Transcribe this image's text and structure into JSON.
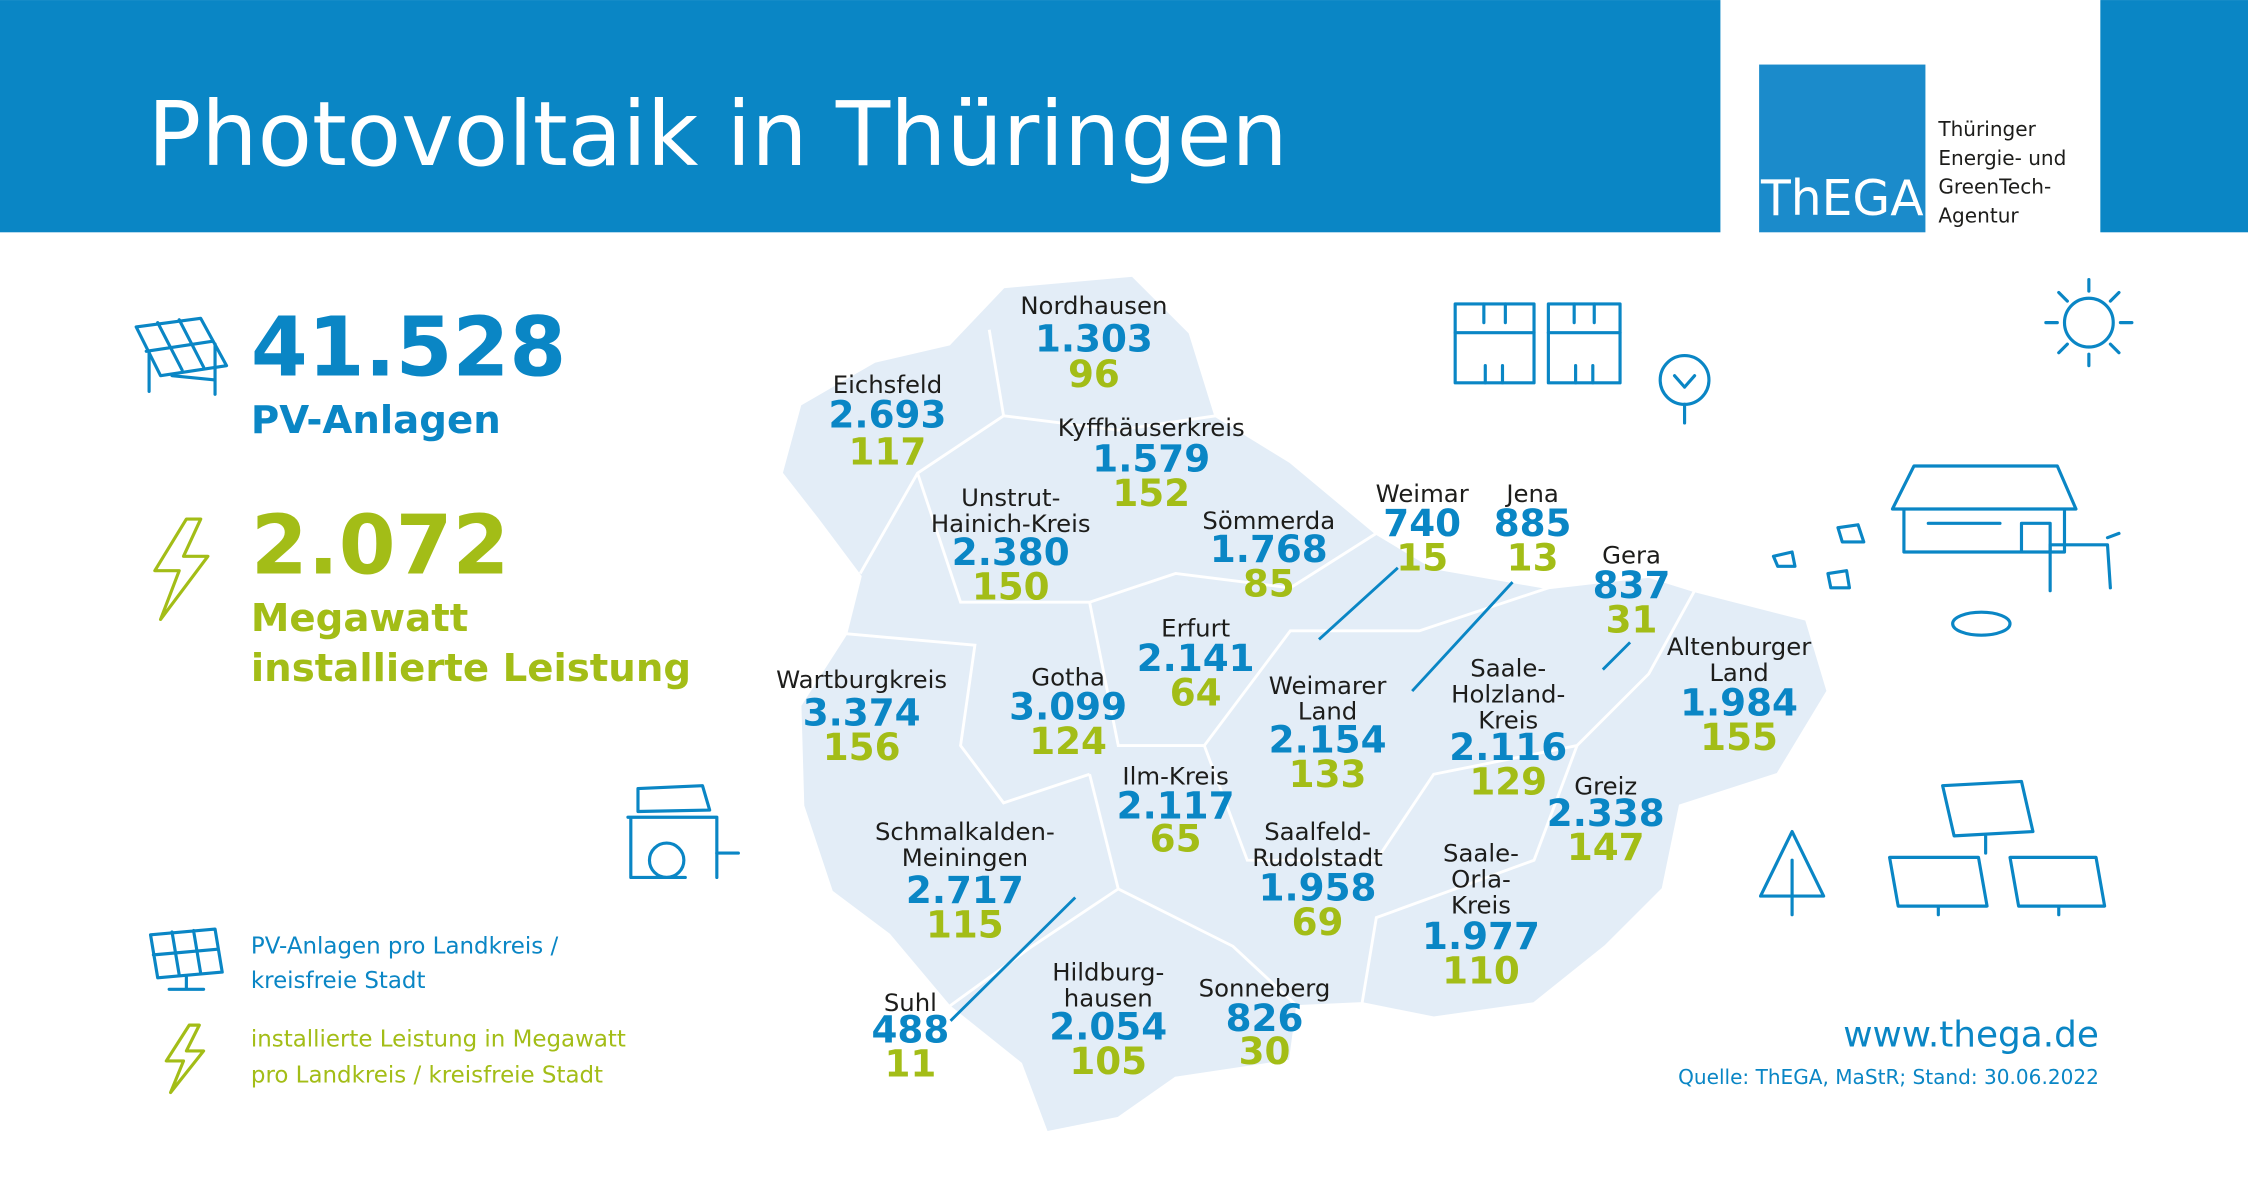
{
  "header": {
    "title": "Photovoltaik in Thüringen",
    "logo": "ThEGA",
    "agency_lines": [
      "Thüringer",
      "Energie- und",
      "GreenTech-",
      "Agentur"
    ]
  },
  "totals": {
    "installations": "41.528",
    "installations_label": "PV-Anlagen",
    "capacity": "2.072",
    "capacity_label_lines": [
      "Megawatt",
      "installierte Leistung"
    ]
  },
  "districts": [
    {
      "name_lines": [
        "Nordhausen"
      ],
      "installations": "1.303",
      "megawatt": "96"
    },
    {
      "name_lines": [
        "Eichsfeld"
      ],
      "installations": "2.693",
      "megawatt": "117"
    },
    {
      "name_lines": [
        "Kyffhäuserkreis"
      ],
      "installations": "1.579",
      "megawatt": "152"
    },
    {
      "name_lines": [
        "Unstrut-",
        "Hainich-Kreis"
      ],
      "installations": "2.380",
      "megawatt": "150"
    },
    {
      "name_lines": [
        "Sömmerda"
      ],
      "installations": "1.768",
      "megawatt": "85"
    },
    {
      "name_lines": [
        "Weimar"
      ],
      "installations": "740",
      "megawatt": "15"
    },
    {
      "name_lines": [
        "Jena"
      ],
      "installations": "885",
      "megawatt": "13"
    },
    {
      "name_lines": [
        "Gera"
      ],
      "installations": "837",
      "megawatt": "31"
    },
    {
      "name_lines": [
        "Erfurt"
      ],
      "installations": "2.141",
      "megawatt": "64"
    },
    {
      "name_lines": [
        "Altenburger",
        "Land"
      ],
      "installations": "1.984",
      "megawatt": "155"
    },
    {
      "name_lines": [
        "Wartburgkreis"
      ],
      "installations": "3.374",
      "megawatt": "156"
    },
    {
      "name_lines": [
        "Gotha"
      ],
      "installations": "3.099",
      "megawatt": "124"
    },
    {
      "name_lines": [
        "Weimarer",
        "Land"
      ],
      "installations": "2.154",
      "megawatt": "133"
    },
    {
      "name_lines": [
        "Saale-",
        "Holzland-",
        "Kreis"
      ],
      "installations": "2.116",
      "megawatt": "129"
    },
    {
      "name_lines": [
        "Ilm-Kreis"
      ],
      "installations": "2.117",
      "megawatt": "65"
    },
    {
      "name_lines": [
        "Greiz"
      ],
      "installations": "2.338",
      "megawatt": "147"
    },
    {
      "name_lines": [
        "Schmalkalden-",
        "Meiningen"
      ],
      "installations": "2.717",
      "megawatt": "115"
    },
    {
      "name_lines": [
        "Saalfeld-",
        "Rudolstadt"
      ],
      "installations": "1.958",
      "megawatt": "69"
    },
    {
      "name_lines": [
        "Saale-",
        "Orla-",
        "Kreis"
      ],
      "installations": "1.977",
      "megawatt": "110"
    },
    {
      "name_lines": [
        "Hildburg-",
        "hausen"
      ],
      "installations": "2.054",
      "megawatt": "105"
    },
    {
      "name_lines": [
        "Sonneberg"
      ],
      "installations": "826",
      "megawatt": "30"
    },
    {
      "name_lines": [
        "Suhl"
      ],
      "installations": "488",
      "megawatt": "11"
    }
  ],
  "legend": {
    "installations_lines": [
      "PV-Anlagen pro Landkreis /",
      "kreisfreie Stadt"
    ],
    "capacity_lines": [
      "installierte Leistung in Megawatt",
      "pro Landkreis / kreisfreie Stadt"
    ]
  },
  "footer": {
    "url": "www.thega.de",
    "source": "Quelle: ThEGA, MaStR; Stand: 30.06.2022"
  }
}
